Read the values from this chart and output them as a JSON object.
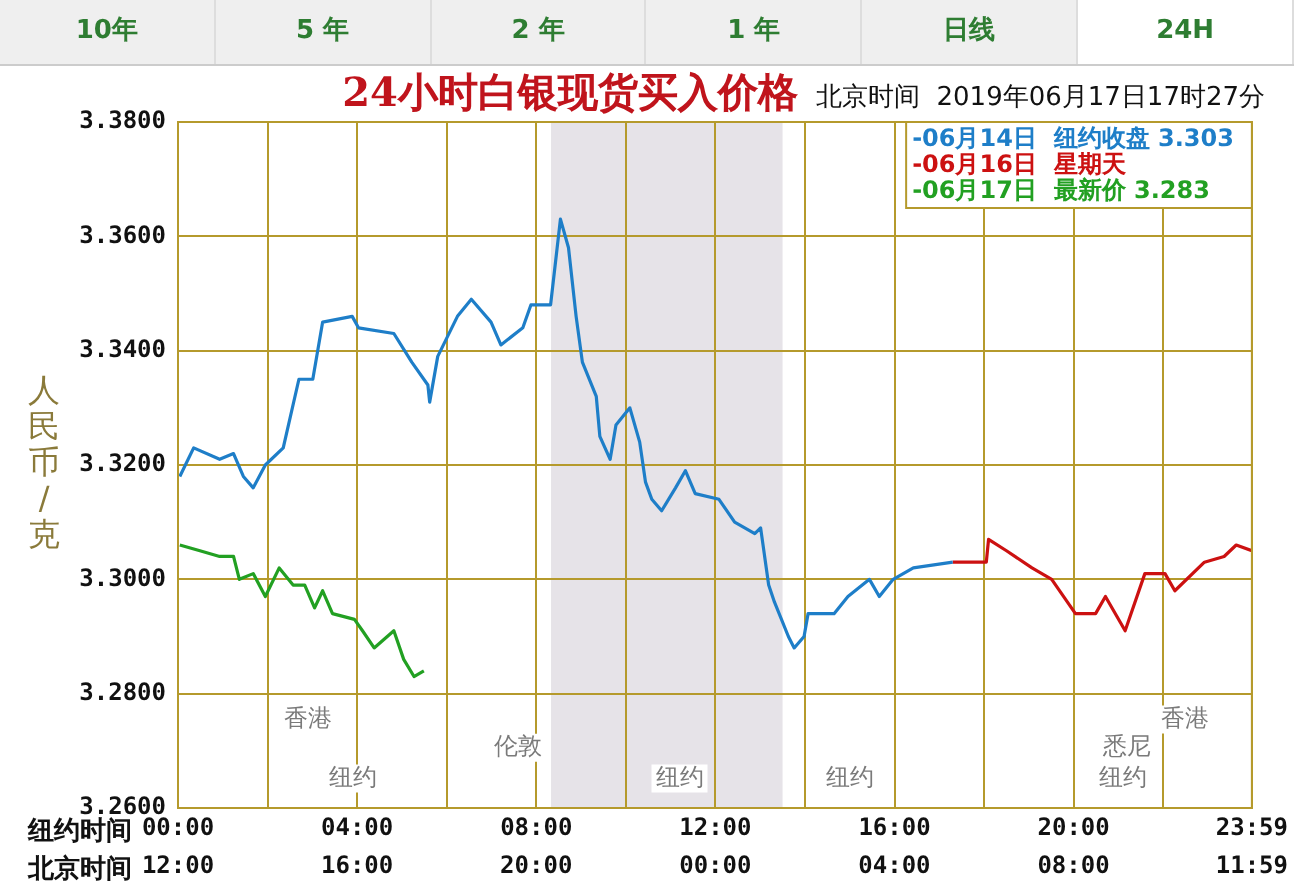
{
  "chart_data": {
    "type": "line",
    "title": "24小时白银现货买入价格",
    "subtitle": "北京时间  2019年06月17日17时27分",
    "ylabel": "人民币/克",
    "xlabel": "纽约时间",
    "x2label": "北京时间",
    "xlim": [
      0,
      23.98
    ],
    "xticks": [
      {
        "value": 0,
        "label": "00:00"
      },
      {
        "value": 2,
        "label": null
      },
      {
        "value": 4,
        "label": "04:00"
      },
      {
        "value": 6,
        "label": null
      },
      {
        "value": 8,
        "label": "08:00"
      },
      {
        "value": 10,
        "label": null
      },
      {
        "value": 12,
        "label": "12:00"
      },
      {
        "value": 14,
        "label": null
      },
      {
        "value": 16,
        "label": "16:00"
      },
      {
        "value": 18,
        "label": null
      },
      {
        "value": 20,
        "label": "20:00"
      },
      {
        "value": 22,
        "label": null
      },
      {
        "value": 23.98,
        "label": "23:59"
      }
    ],
    "x2lim": [
      "2019-06-14T12:00",
      "2019-06-15T11:59"
    ],
    "x2ticks": [
      {
        "value": "2019-06-14T12:00",
        "label": "12:00"
      },
      {
        "value": "2019-06-14T16:00",
        "label": "16:00"
      },
      {
        "value": "2019-06-14T20:00",
        "label": "20:00"
      },
      {
        "value": "2019-06-15T00:00",
        "label": "00:00"
      },
      {
        "value": "2019-06-15T04:00",
        "label": "04:00"
      },
      {
        "value": "2019-06-15T08:00",
        "label": "08:00"
      },
      {
        "value": "2019-06-15T11:59",
        "label": "11:59"
      }
    ],
    "ylim": [
      3.26,
      3.38
    ],
    "yticks": [
      {
        "value": 3.26,
        "label": "3.2600"
      },
      {
        "value": 3.28,
        "label": "3.2800"
      },
      {
        "value": 3.3,
        "label": "3.3000"
      },
      {
        "value": 3.32,
        "label": "3.3200"
      },
      {
        "value": 3.34,
        "label": "3.3400"
      },
      {
        "value": 3.36,
        "label": "3.3600"
      },
      {
        "value": 3.38,
        "label": "3.3800"
      }
    ],
    "grid": true,
    "legend": "top right",
    "marker": "none",
    "line_style": "solid",
    "bands": [
      {
        "axis": "x",
        "from": 8.33,
        "to": 13.5,
        "color": "#e6e3e8"
      }
    ],
    "series": [
      {
        "name": "-06月14日  纽约收盘 3.303",
        "color": "#1e7ec8",
        "x": [
          0.04,
          0.35,
          0.93,
          1.24,
          1.46,
          1.68,
          1.95,
          2.35,
          2.7,
          3.01,
          3.23,
          3.89,
          4.03,
          4.82,
          5.22,
          5.58,
          5.62,
          5.8,
          6.24,
          6.55,
          6.99,
          7.21,
          7.7,
          7.88,
          8.32,
          8.54,
          8.72,
          8.89,
          9.03,
          9.34,
          9.42,
          9.65,
          9.78,
          10.09,
          10.31,
          10.44,
          10.58,
          10.8,
          11.11,
          11.33,
          11.55,
          12.08,
          12.43,
          12.88,
          13.01,
          13.19,
          13.32,
          13.63,
          13.76,
          13.98,
          14.07,
          14.65,
          14.96,
          15.44,
          15.66,
          15.97,
          16.42,
          17.3
        ],
        "values": [
          3.318,
          3.323,
          3.321,
          3.322,
          3.318,
          3.316,
          3.32,
          3.323,
          3.335,
          3.335,
          3.345,
          3.346,
          3.344,
          3.343,
          3.338,
          3.334,
          3.331,
          3.339,
          3.346,
          3.349,
          3.345,
          3.341,
          3.344,
          3.348,
          3.348,
          3.363,
          3.358,
          3.346,
          3.338,
          3.332,
          3.325,
          3.321,
          3.327,
          3.33,
          3.324,
          3.317,
          3.314,
          3.312,
          3.316,
          3.319,
          3.315,
          3.314,
          3.31,
          3.308,
          3.309,
          3.299,
          3.296,
          3.29,
          3.288,
          3.29,
          3.294,
          3.294,
          3.297,
          3.3,
          3.297,
          3.3,
          3.302,
          3.303
        ]
      },
      {
        "name": "-06月16日  星期天",
        "color": "#cc1111",
        "x": [
          17.3,
          18.05,
          18.1,
          18.5,
          19.07,
          19.51,
          20.04,
          20.49,
          20.71,
          21.15,
          21.59,
          22.04,
          22.26,
          22.92,
          23.36,
          23.63,
          23.98
        ],
        "values": [
          3.303,
          3.303,
          3.307,
          3.305,
          3.302,
          3.3,
          3.294,
          3.294,
          3.297,
          3.291,
          3.301,
          3.301,
          3.298,
          3.303,
          3.304,
          3.306,
          3.305
        ]
      },
      {
        "name": "-06月17日  最新价 3.283",
        "color": "#22a022",
        "x": [
          0.04,
          0.49,
          0.93,
          1.24,
          1.37,
          1.68,
          1.95,
          2.26,
          2.57,
          2.83,
          3.05,
          3.23,
          3.45,
          3.94,
          4.12,
          4.38,
          4.82,
          5.04,
          5.27,
          5.49
        ],
        "values": [
          3.306,
          3.305,
          3.304,
          3.304,
          3.3,
          3.301,
          3.297,
          3.302,
          3.299,
          3.299,
          3.295,
          3.298,
          3.294,
          3.293,
          3.291,
          3.288,
          3.291,
          3.286,
          3.283,
          3.284
        ]
      }
    ],
    "annotations": [
      "10年",
      "5 年",
      "2 年",
      "1 年",
      "日线",
      "24H",
      "香港",
      "伦敦",
      "纽约",
      "纽约",
      "纽约",
      "香港",
      "悉尼",
      "纽约"
    ]
  }
}
